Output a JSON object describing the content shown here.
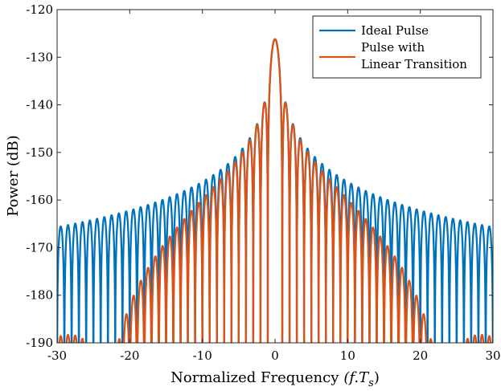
{
  "chart_data": {
    "type": "line",
    "title": "",
    "xlabel": "Normalized Frequency",
    "xlabel_math": "(f.T",
    "xlabel_sub": "s",
    "xlabel_close": ")",
    "ylabel": "Power (dB)",
    "xlim": [
      -30,
      30
    ],
    "ylim": [
      -190,
      -120
    ],
    "xticks": [
      -30,
      -20,
      -10,
      0,
      10,
      20,
      30
    ],
    "yticks": [
      -120,
      -130,
      -140,
      -150,
      -160,
      -170,
      -180,
      -190
    ],
    "xtick_labels": [
      "-30",
      "-20",
      "-10",
      "0",
      "10",
      "20",
      "30"
    ],
    "ytick_labels": [
      "-120",
      "-130",
      "-140",
      "-150",
      "-160",
      "-170",
      "-180",
      "-190"
    ],
    "grid": false,
    "legend_position": "top-right",
    "series": [
      {
        "name": "Ideal Pulse",
        "color": "#0072BD",
        "model": "sinc-squared",
        "peak_db": -126.2,
        "null_spacing": 1
      },
      {
        "name": "Pulse with Linear Transition",
        "legend_lines": [
          "Pulse with",
          "Linear Transition"
        ],
        "color": "#D95319",
        "model": "sinc-squared with raised-cosine transition",
        "peak_db": -126.2,
        "null_spacing": 1,
        "transition_fraction": 0.065
      }
    ]
  }
}
